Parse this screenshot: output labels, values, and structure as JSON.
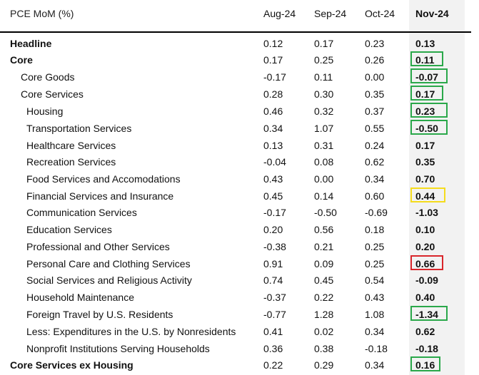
{
  "table": {
    "title": "PCE MoM (%)",
    "columns": [
      "Aug-24",
      "Sep-24",
      "Oct-24",
      "Nov-24"
    ],
    "rows": [
      {
        "label": "Headline",
        "values": [
          "0.12",
          "0.17",
          "0.23",
          "0.13"
        ]
      },
      {
        "label": "Core",
        "values": [
          "0.17",
          "0.25",
          "0.26",
          "0.11"
        ]
      },
      {
        "label": "Core Goods",
        "values": [
          "-0.17",
          "0.11",
          "0.00",
          "-0.07"
        ]
      },
      {
        "label": "Core Services",
        "values": [
          "0.28",
          "0.30",
          "0.35",
          "0.17"
        ]
      },
      {
        "label": "Housing",
        "values": [
          "0.46",
          "0.32",
          "0.37",
          "0.23"
        ]
      },
      {
        "label": "Transportation Services",
        "values": [
          "0.34",
          "1.07",
          "0.55",
          "-0.50"
        ]
      },
      {
        "label": "Healthcare Services",
        "values": [
          "0.13",
          "0.31",
          "0.24",
          "0.17"
        ]
      },
      {
        "label": "Recreation Services",
        "values": [
          "-0.04",
          "0.08",
          "0.62",
          "0.35"
        ]
      },
      {
        "label": "Food Services and Accomodations",
        "values": [
          "0.43",
          "0.00",
          "0.34",
          "0.70"
        ]
      },
      {
        "label": "Financial Services and Insurance",
        "values": [
          "0.45",
          "0.14",
          "0.60",
          "0.44"
        ]
      },
      {
        "label": "Communication Services",
        "values": [
          "-0.17",
          "-0.50",
          "-0.69",
          "-1.03"
        ]
      },
      {
        "label": "Education Services",
        "values": [
          "0.20",
          "0.56",
          "0.18",
          "0.10"
        ]
      },
      {
        "label": "Professional and Other Services",
        "values": [
          "-0.38",
          "0.21",
          "0.25",
          "0.20"
        ]
      },
      {
        "label": "Personal Care and Clothing Services",
        "values": [
          "0.91",
          "0.09",
          "0.25",
          "0.66"
        ]
      },
      {
        "label": "Social Services and Religious Activity",
        "values": [
          "0.74",
          "0.45",
          "0.54",
          "-0.09"
        ]
      },
      {
        "label": "Household Maintenance",
        "values": [
          "-0.37",
          "0.22",
          "0.43",
          "0.40"
        ]
      },
      {
        "label": "Foreign Travel by U.S. Residents",
        "values": [
          "-0.77",
          "1.28",
          "1.08",
          "-1.34"
        ]
      },
      {
        "label": "Less: Expenditures in the U.S. by Nonresidents",
        "values": [
          "0.41",
          "0.02",
          "0.34",
          "0.62"
        ]
      },
      {
        "label": "Nonprofit Institutions Serving Households",
        "values": [
          "0.36",
          "0.38",
          "-0.18",
          "-0.18"
        ]
      },
      {
        "label": "Core Services ex Housing",
        "values": [
          "0.22",
          "0.29",
          "0.34",
          "0.16"
        ]
      }
    ],
    "highlights": [
      {
        "row": 1,
        "color": "#2aa84a"
      },
      {
        "row": 2,
        "color": "#2aa84a"
      },
      {
        "row": 3,
        "color": "#2aa84a"
      },
      {
        "row": 4,
        "color": "#2aa84a"
      },
      {
        "row": 5,
        "color": "#2aa84a"
      },
      {
        "row": 9,
        "color": "#f5dc1d"
      },
      {
        "row": 13,
        "color": "#d9262b"
      },
      {
        "row": 16,
        "color": "#2aa84a"
      },
      {
        "row": 19,
        "color": "#2aa84a"
      }
    ]
  }
}
